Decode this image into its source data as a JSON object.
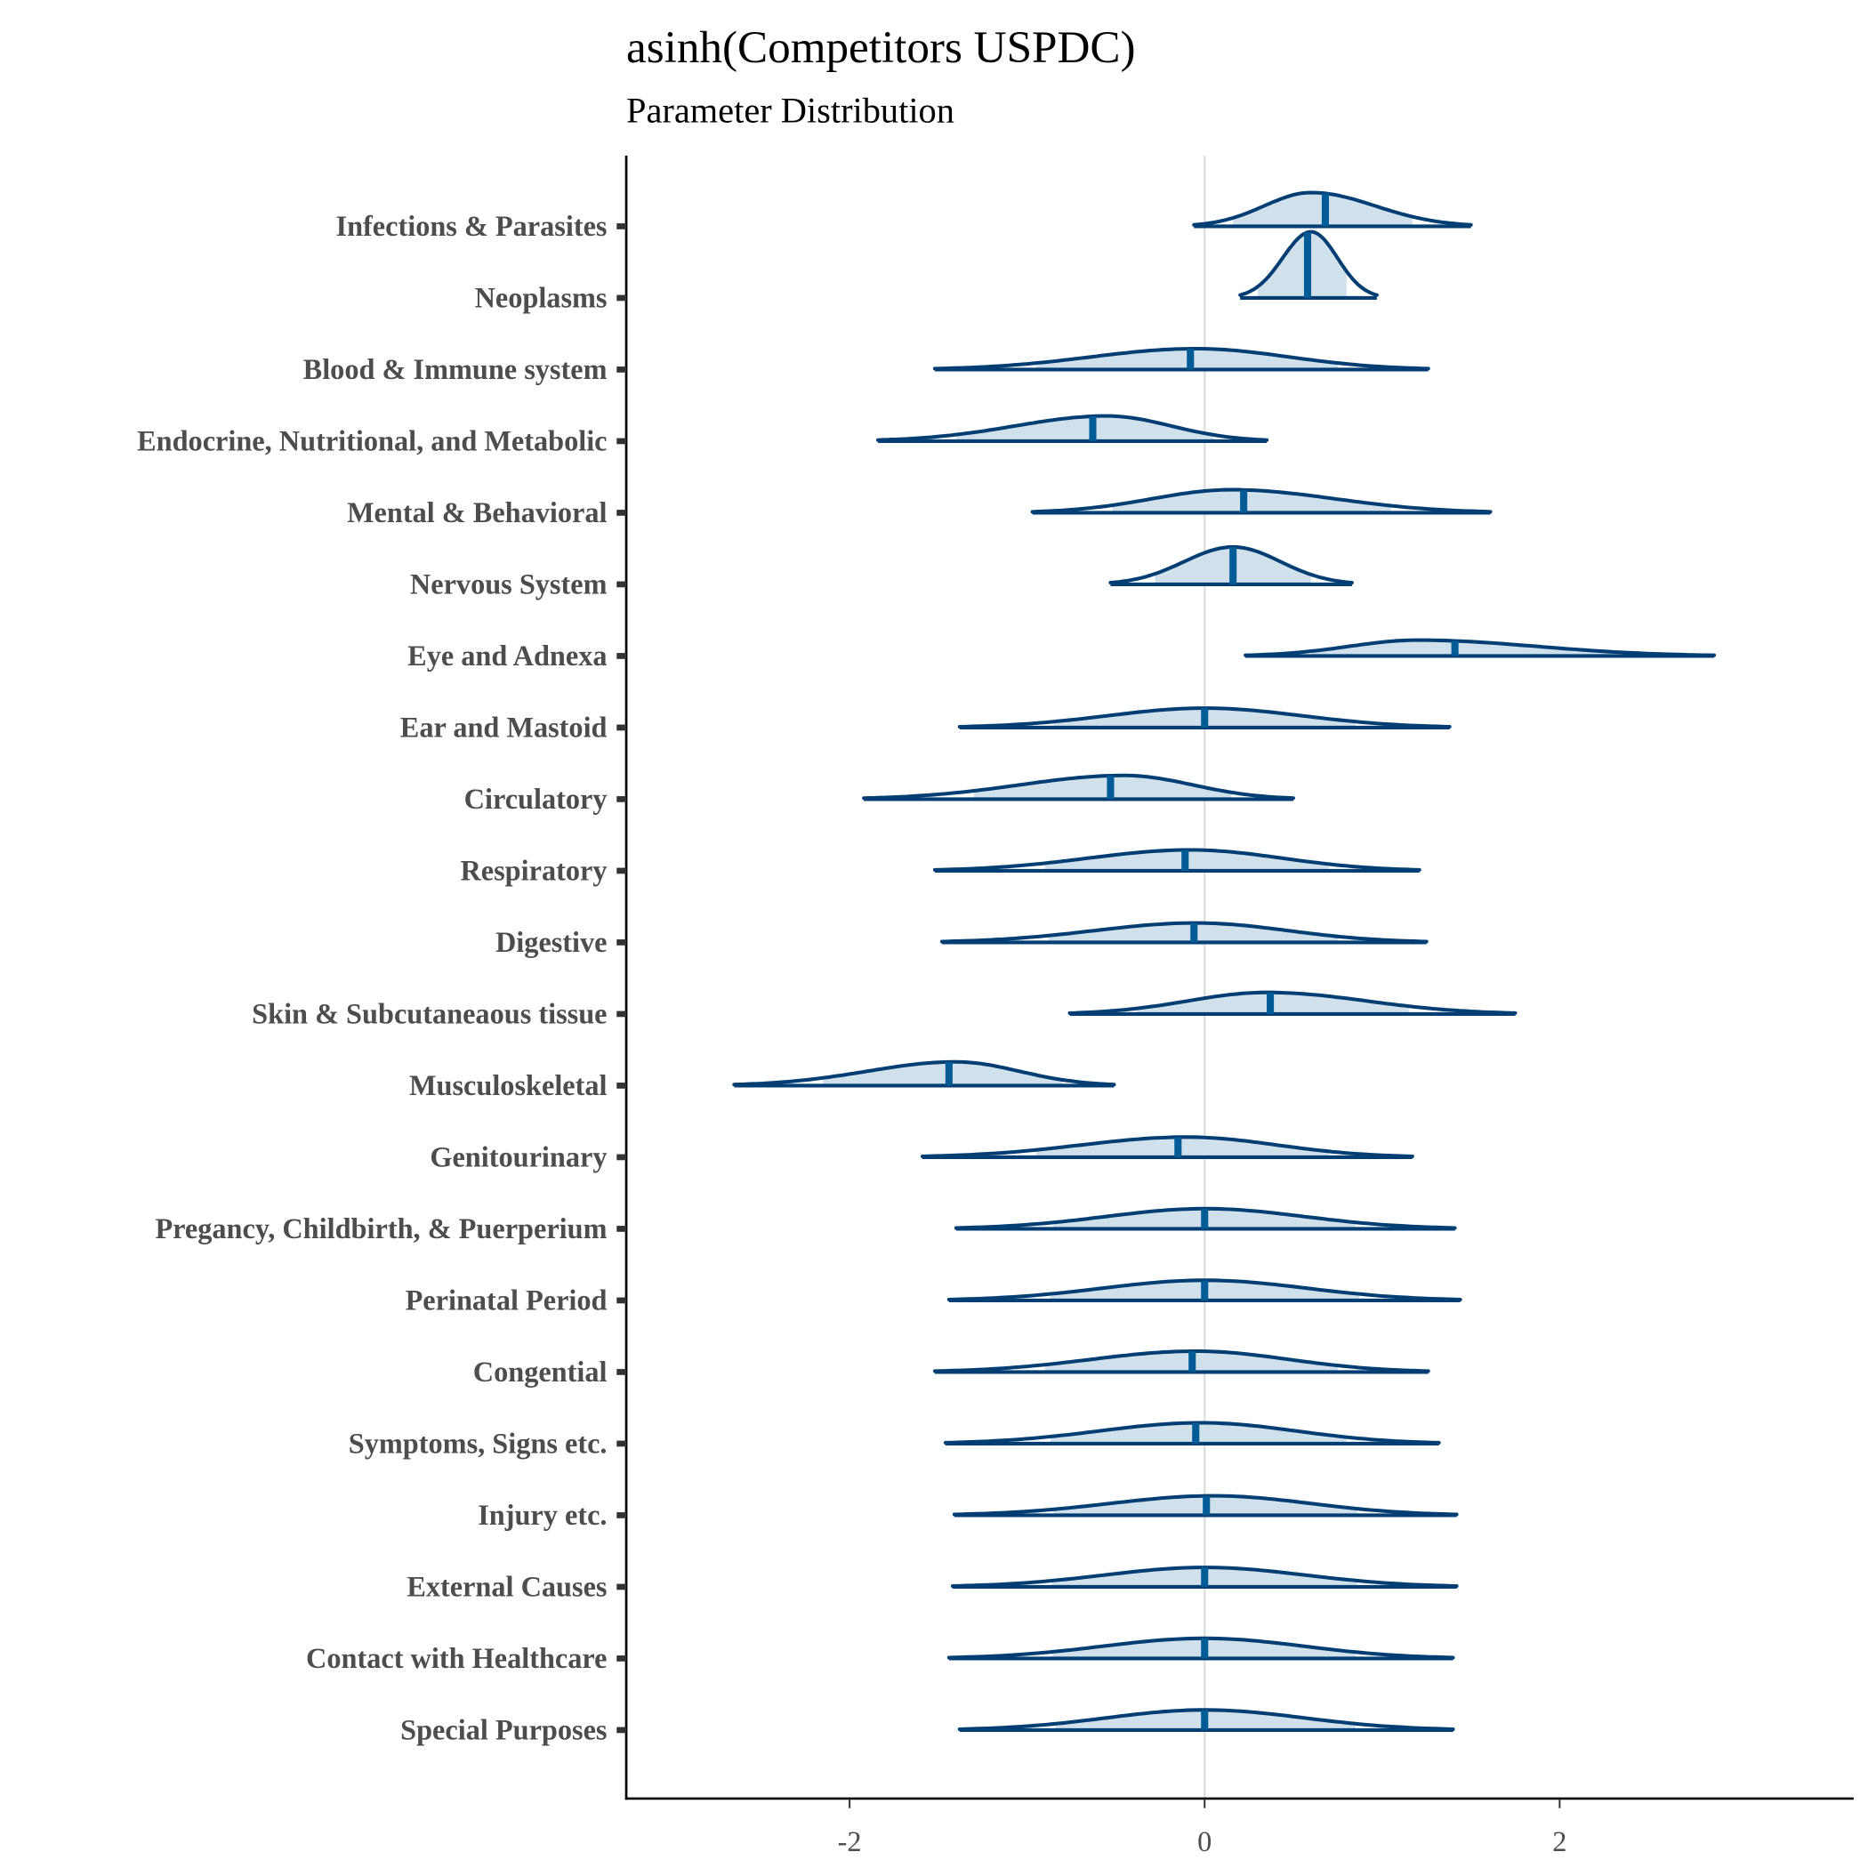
{
  "chart_data": {
    "type": "ridgeline",
    "title": "asinh(Competitors USPDC)",
    "subtitle": "Parameter Distribution",
    "xlabel": "",
    "ylabel": "",
    "xlim": [
      -3.25,
      3.65
    ],
    "xticks": [
      -2,
      0,
      2
    ],
    "xtick_labels": [
      "-2",
      "0",
      "2"
    ],
    "reference_line_x": 0,
    "grid": false,
    "colors": {
      "outline": "#023e73",
      "median": "#005b96",
      "interval_fill": "#d1e1ec",
      "reference": "#e0e0e0"
    },
    "series": [
      {
        "name": "Infections & Parasites",
        "min": -0.06,
        "max": 1.5,
        "median": 0.68,
        "mode": 0.6,
        "interval": [
          0.16,
          1.17
        ],
        "height": 0.47
      },
      {
        "name": "Neoplasms",
        "min": 0.2,
        "max": 0.97,
        "median": 0.58,
        "mode": 0.6,
        "interval": [
          0.3,
          0.8
        ],
        "height": 0.92
      },
      {
        "name": "Blood & Immune system",
        "min": -1.52,
        "max": 1.26,
        "median": -0.08,
        "mode": -0.05,
        "interval": [
          -0.95,
          0.75
        ],
        "height": 0.29
      },
      {
        "name": "Endocrine, Nutritional, and Metabolic",
        "min": -1.84,
        "max": 0.35,
        "median": -0.63,
        "mode": -0.55,
        "interval": [
          -1.4,
          0.05
        ],
        "height": 0.35
      },
      {
        "name": "Mental & Behavioral",
        "min": -0.97,
        "max": 1.61,
        "median": 0.22,
        "mode": 0.15,
        "interval": [
          -0.52,
          1.05
        ],
        "height": 0.32
      },
      {
        "name": "Nervous System",
        "min": -0.53,
        "max": 0.83,
        "median": 0.16,
        "mode": 0.16,
        "interval": [
          -0.28,
          0.6
        ],
        "height": 0.52
      },
      {
        "name": "Eye and Adnexa",
        "min": 0.23,
        "max": 2.87,
        "median": 1.41,
        "mode": 1.2,
        "interval": [
          0.6,
          2.3
        ],
        "height": 0.22
      },
      {
        "name": "Ear and Mastoid",
        "min": -1.38,
        "max": 1.38,
        "median": 0.0,
        "mode": 0.0,
        "interval": [
          -0.85,
          0.85
        ],
        "height": 0.27
      },
      {
        "name": "Circulatory",
        "min": -1.92,
        "max": 0.5,
        "median": -0.53,
        "mode": -0.45,
        "interval": [
          -1.3,
          0.15
        ],
        "height": 0.33
      },
      {
        "name": "Respiratory",
        "min": -1.52,
        "max": 1.21,
        "median": -0.11,
        "mode": -0.08,
        "interval": [
          -0.9,
          0.7
        ],
        "height": 0.29
      },
      {
        "name": "Digestive",
        "min": -1.48,
        "max": 1.25,
        "median": -0.06,
        "mode": -0.05,
        "interval": [
          -0.88,
          0.75
        ],
        "height": 0.27
      },
      {
        "name": "Skin & Subcutaneaous tissue",
        "min": -0.76,
        "max": 1.75,
        "median": 0.37,
        "mode": 0.35,
        "interval": [
          -0.38,
          1.15
        ],
        "height": 0.3
      },
      {
        "name": "Musculoskeletal",
        "min": -2.65,
        "max": -0.51,
        "median": -1.44,
        "mode": -1.4,
        "interval": [
          -2.15,
          -0.8
        ],
        "height": 0.33
      },
      {
        "name": "Genitourinary",
        "min": -1.59,
        "max": 1.17,
        "median": -0.15,
        "mode": -0.1,
        "interval": [
          -0.95,
          0.7
        ],
        "height": 0.28
      },
      {
        "name": "Pregancy, Childbirth, & Puerperium",
        "min": -1.4,
        "max": 1.41,
        "median": 0.0,
        "mode": 0.0,
        "interval": [
          -0.85,
          0.85
        ],
        "height": 0.28
      },
      {
        "name": "Perinatal Period",
        "min": -1.44,
        "max": 1.44,
        "median": 0.0,
        "mode": 0.0,
        "interval": [
          -0.87,
          0.87
        ],
        "height": 0.28
      },
      {
        "name": "Congential",
        "min": -1.52,
        "max": 1.26,
        "median": -0.07,
        "mode": -0.05,
        "interval": [
          -0.9,
          0.75
        ],
        "height": 0.29
      },
      {
        "name": "Symptoms, Signs etc.",
        "min": -1.46,
        "max": 1.32,
        "median": -0.05,
        "mode": -0.02,
        "interval": [
          -0.87,
          0.8
        ],
        "height": 0.29
      },
      {
        "name": "Injury etc.",
        "min": -1.41,
        "max": 1.42,
        "median": 0.01,
        "mode": 0.05,
        "interval": [
          -0.85,
          0.86
        ],
        "height": 0.27
      },
      {
        "name": "External Causes",
        "min": -1.42,
        "max": 1.42,
        "median": 0.0,
        "mode": 0.0,
        "interval": [
          -0.86,
          0.86
        ],
        "height": 0.27
      },
      {
        "name": "Contact with Healthcare",
        "min": -1.44,
        "max": 1.4,
        "median": 0.0,
        "mode": 0.0,
        "interval": [
          -0.86,
          0.85
        ],
        "height": 0.28
      },
      {
        "name": "Special Purposes",
        "min": -1.38,
        "max": 1.4,
        "median": 0.0,
        "mode": 0.0,
        "interval": [
          -0.84,
          0.85
        ],
        "height": 0.28
      }
    ]
  }
}
